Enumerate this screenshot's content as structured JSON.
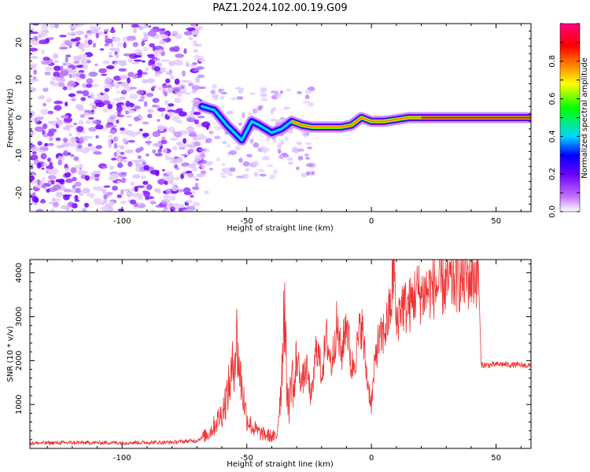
{
  "figure": {
    "title": "PAZ1.2024.102.00.19.G09"
  },
  "chart_data": [
    {
      "type": "heatmap",
      "xlabel": "Height of straight line (km)",
      "ylabel": "Frequency (Hz)",
      "xlim": [
        -137,
        64
      ],
      "ylim": [
        -25,
        25
      ],
      "xticks": [
        -100,
        -50,
        0,
        50
      ],
      "yticks": [
        -20,
        -10,
        0,
        10,
        20
      ],
      "colorbar": {
        "label": "Normalized spectral amplitude",
        "range": [
          0,
          1
        ],
        "ticks": [
          0.0,
          0.2,
          0.4,
          0.6,
          0.8
        ],
        "colors": [
          "#ffffff",
          "#9040ff",
          "#0000ff",
          "#00d8ff",
          "#00ff00",
          "#ffff00",
          "#ff8000",
          "#ff0000",
          "#ff0080"
        ]
      },
      "ridge_frequency_hz": {
        "x": [
          -68,
          -63,
          -58,
          -55,
          -52,
          -48,
          -45,
          -40,
          -36,
          -32,
          -28,
          -24,
          -20,
          -16,
          -12,
          -8,
          -4,
          0,
          5,
          10,
          15,
          20,
          40,
          64
        ],
        "y": [
          3,
          2,
          -2,
          -4,
          -6,
          -1,
          -2,
          -4,
          -3,
          -1,
          -2,
          -2.5,
          -2.5,
          -2.5,
          -2.5,
          -2,
          0,
          -1,
          -1,
          -0.5,
          0,
          0,
          0,
          0
        ]
      },
      "background_noise_x_range": [
        -137,
        -68
      ]
    },
    {
      "type": "line",
      "xlabel": "Height of straight line (km)",
      "ylabel": "SNR (10 * v/v)",
      "xlim": [
        -137,
        64
      ],
      "ylim": [
        0,
        4300
      ],
      "xticks": [
        -100,
        -50,
        0,
        50
      ],
      "yticks": [
        1000,
        2000,
        3000,
        4000
      ],
      "series": [
        {
          "color": "#ee3333",
          "x": [
            -137,
            -120,
            -100,
            -80,
            -70,
            -65,
            -60,
            -58,
            -56,
            -54,
            -53,
            -52,
            -50,
            -48,
            -45,
            -42,
            -38,
            -36,
            -35,
            -34,
            -33,
            -32,
            -31,
            -30,
            -28,
            -26,
            -24,
            -22,
            -20,
            -18,
            -16,
            -14,
            -12,
            -10,
            -8,
            -6,
            -4,
            -2,
            0,
            2,
            4,
            6,
            8,
            9,
            10,
            11,
            12,
            14,
            16,
            18,
            20,
            24,
            28,
            32,
            36,
            40,
            42,
            43,
            44,
            48,
            52,
            56,
            60,
            64
          ],
          "y": [
            120,
            130,
            130,
            140,
            180,
            350,
            800,
            1200,
            1700,
            2500,
            1800,
            1400,
            700,
            500,
            350,
            300,
            250,
            1600,
            3550,
            1500,
            900,
            1800,
            1200,
            2100,
            1500,
            1800,
            1100,
            2400,
            1700,
            2500,
            1900,
            2800,
            2100,
            3000,
            1800,
            2200,
            2900,
            1700,
            1000,
            2300,
            2500,
            2800,
            3300,
            4300,
            2700,
            3100,
            3300,
            3200,
            3300,
            3600,
            3500,
            3650,
            3700,
            3800,
            3850,
            3900,
            3950,
            3900,
            1900,
            1900,
            1920,
            1900,
            1900,
            1880
          ]
        }
      ]
    }
  ]
}
